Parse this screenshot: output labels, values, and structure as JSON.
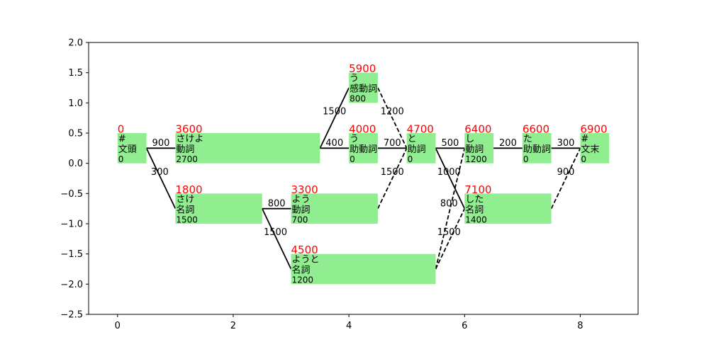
{
  "chart_data": {
    "type": "lattice",
    "xlim": [
      -0.5,
      9.0
    ],
    "ylim": [
      -2.5,
      2.0
    ],
    "xticks": [
      0,
      2,
      4,
      6,
      8
    ],
    "yticks": [
      2.0,
      1.5,
      1.0,
      0.5,
      0.0,
      -0.5,
      -1.0,
      -1.5,
      -2.0,
      -2.5
    ],
    "xtick_labels": [
      "0",
      "2",
      "4",
      "6",
      "8"
    ],
    "ytick_labels": [
      "2.0",
      "1.5",
      "1.0",
      "0.5",
      "0.0",
      "−0.5",
      "−1.0",
      "−1.5",
      "−2.0",
      "−2.5"
    ],
    "colors": {
      "node_fill": "#90ee90",
      "score": "#ff0000",
      "edge": "#000000"
    },
    "nodes": [
      {
        "id": "bos",
        "x0": 0,
        "x1": 0.5,
        "y0": 0,
        "y1": 0.5,
        "score": "0",
        "surface": "#",
        "pos": "文頭",
        "cost": "0"
      },
      {
        "id": "sakeyo",
        "x0": 1,
        "x1": 3.5,
        "y0": 0,
        "y1": 0.5,
        "score": "3600",
        "surface": "さけよ",
        "pos": "動詞",
        "cost": "2700"
      },
      {
        "id": "sake",
        "x0": 1,
        "x1": 2.5,
        "y0": -1,
        "y1": -0.5,
        "score": "1800",
        "surface": "さけ",
        "pos": "名詞",
        "cost": "1500"
      },
      {
        "id": "u_kan",
        "x0": 4,
        "x1": 4.5,
        "y0": 1,
        "y1": 1.5,
        "score": "5900",
        "surface": "う",
        "pos": "感動詞",
        "cost": "800"
      },
      {
        "id": "u_jodo",
        "x0": 4,
        "x1": 4.5,
        "y0": 0,
        "y1": 0.5,
        "score": "4000",
        "surface": "う",
        "pos": "助動詞",
        "cost": "0"
      },
      {
        "id": "you_verb",
        "x0": 3,
        "x1": 4.5,
        "y0": -1,
        "y1": -0.5,
        "score": "3300",
        "surface": "よう",
        "pos": "動詞",
        "cost": "700"
      },
      {
        "id": "youto",
        "x0": 3,
        "x1": 5.5,
        "y0": -2,
        "y1": -1.5,
        "score": "4500",
        "surface": "ようと",
        "pos": "名詞",
        "cost": "1200"
      },
      {
        "id": "to",
        "x0": 5,
        "x1": 5.5,
        "y0": 0,
        "y1": 0.5,
        "score": "4700",
        "surface": "と",
        "pos": "助詞",
        "cost": "0"
      },
      {
        "id": "shi",
        "x0": 6,
        "x1": 6.5,
        "y0": 0,
        "y1": 0.5,
        "score": "6400",
        "surface": "し",
        "pos": "動詞",
        "cost": "1200"
      },
      {
        "id": "shita",
        "x0": 6,
        "x1": 7.5,
        "y0": -1,
        "y1": -0.5,
        "score": "7100",
        "surface": "した",
        "pos": "名詞",
        "cost": "1400"
      },
      {
        "id": "ta",
        "x0": 7,
        "x1": 7.5,
        "y0": 0,
        "y1": 0.5,
        "score": "6600",
        "surface": "た",
        "pos": "助動詞",
        "cost": "0"
      },
      {
        "id": "eos",
        "x0": 8,
        "x1": 8.5,
        "y0": 0,
        "y1": 0.5,
        "score": "6900",
        "surface": "#",
        "pos": "文末",
        "cost": "0"
      }
    ],
    "edges": [
      {
        "x0": 0.5,
        "y0": 0.25,
        "x1": 1.0,
        "y1": 0.25,
        "style": "solid",
        "label": "900",
        "lx": 0.75,
        "ly": 0.29
      },
      {
        "x0": 0.5,
        "y0": 0.25,
        "x1": 1.0,
        "y1": -0.75,
        "style": "solid",
        "label": "300",
        "lx": 0.73,
        "ly": -0.19
      },
      {
        "x0": 2.5,
        "y0": -0.75,
        "x1": 3.0,
        "y1": -0.75,
        "style": "solid",
        "label": "800",
        "lx": 2.75,
        "ly": -0.71
      },
      {
        "x0": 2.5,
        "y0": -0.75,
        "x1": 3.0,
        "y1": -1.75,
        "style": "solid",
        "label": "1500",
        "lx": 2.73,
        "ly": -1.19
      },
      {
        "x0": 3.5,
        "y0": 0.25,
        "x1": 4.0,
        "y1": 1.25,
        "style": "solid",
        "label": "1500",
        "lx": 3.75,
        "ly": 0.81
      },
      {
        "x0": 3.5,
        "y0": 0.25,
        "x1": 4.0,
        "y1": 0.25,
        "style": "solid",
        "label": "400",
        "lx": 3.75,
        "ly": 0.29
      },
      {
        "x0": 4.5,
        "y0": 1.25,
        "x1": 5.0,
        "y1": 0.25,
        "style": "dashed",
        "label": "1200",
        "lx": 4.75,
        "ly": 0.81
      },
      {
        "x0": 4.5,
        "y0": 0.25,
        "x1": 5.0,
        "y1": 0.25,
        "style": "solid",
        "label": "700",
        "lx": 4.75,
        "ly": 0.29
      },
      {
        "x0": 4.5,
        "y0": -0.75,
        "x1": 5.0,
        "y1": 0.25,
        "style": "dashed",
        "label": "1500",
        "lx": 4.75,
        "ly": -0.19
      },
      {
        "x0": 5.5,
        "y0": 0.25,
        "x1": 6.0,
        "y1": 0.25,
        "style": "solid",
        "label": "500",
        "lx": 5.75,
        "ly": 0.29
      },
      {
        "x0": 5.5,
        "y0": 0.25,
        "x1": 6.0,
        "y1": -0.75,
        "style": "solid",
        "label": "1000",
        "lx": 5.73,
        "ly": -0.19
      },
      {
        "x0": 5.5,
        "y0": -1.75,
        "x1": 6.0,
        "y1": 0.25,
        "style": "dashed",
        "label": "800",
        "lx": 5.73,
        "ly": -0.71
      },
      {
        "x0": 5.5,
        "y0": -1.75,
        "x1": 6.0,
        "y1": -0.75,
        "style": "dashed",
        "label": "1500",
        "lx": 5.73,
        "ly": -1.19
      },
      {
        "x0": 6.5,
        "y0": 0.25,
        "x1": 7.0,
        "y1": 0.25,
        "style": "solid",
        "label": "200",
        "lx": 6.75,
        "ly": 0.29
      },
      {
        "x0": 7.5,
        "y0": 0.25,
        "x1": 8.0,
        "y1": 0.25,
        "style": "solid",
        "label": "300",
        "lx": 7.75,
        "ly": 0.29
      },
      {
        "x0": 7.5,
        "y0": -0.75,
        "x1": 8.0,
        "y1": 0.25,
        "style": "dashed",
        "label": "900",
        "lx": 7.75,
        "ly": -0.19
      }
    ]
  }
}
